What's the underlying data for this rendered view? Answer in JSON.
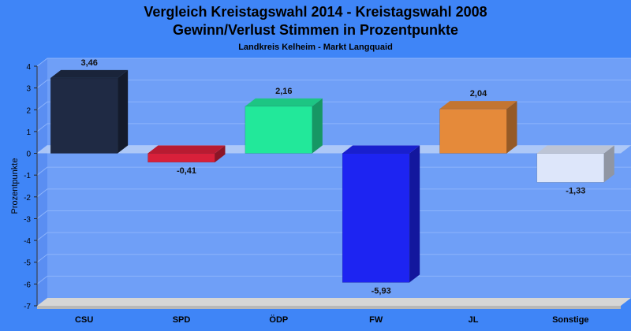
{
  "chart_data": {
    "type": "bar",
    "title": "Vergleich Kreistagswahl 2014 - Kreistagswahl 2008",
    "subtitle_line2": "Gewinn/Verlust Stimmen in Prozentpunkte",
    "subtitle": "Landkreis Kelheim - Markt Langquaid",
    "ylabel": "Prozentpunkte",
    "xlabel": "",
    "ylim": [
      -7,
      4
    ],
    "yticks": [
      4,
      3,
      2,
      1,
      0,
      -1,
      -2,
      -3,
      -4,
      -5,
      -6,
      -7
    ],
    "ytick_labels": [
      "4",
      "3",
      "2",
      "1",
      "0",
      "-1",
      "-2",
      "-3",
      "-4",
      "-5",
      "-6",
      "-7"
    ],
    "categories": [
      "CSU",
      "SPD",
      "ÖDP",
      "FW",
      "JL",
      "Sonstige"
    ],
    "values": [
      3.46,
      -0.41,
      2.16,
      -5.93,
      2.04,
      -1.33
    ],
    "value_labels": [
      "3,46",
      "-0,41",
      "2,16",
      "-5,93",
      "2,04",
      "-1,33"
    ],
    "colors": [
      "#1f2a44",
      "#d8203a",
      "#22e89a",
      "#1d24f2",
      "#e58a3a",
      "#dde6fa"
    ],
    "grid": true,
    "legend": "none"
  }
}
